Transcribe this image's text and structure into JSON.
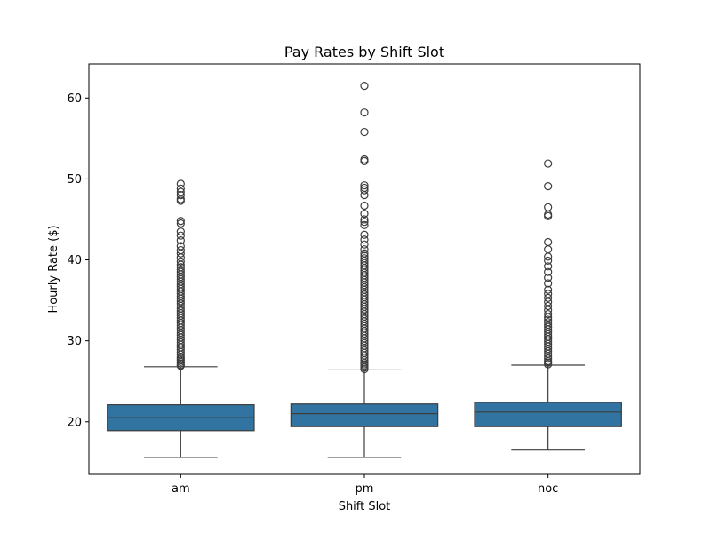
{
  "chart_data": {
    "type": "box",
    "title": "Pay Rates by Shift Slot",
    "xlabel": "Shift Slot",
    "ylabel": "Hourly Rate ($)",
    "categories": [
      "am",
      "pm",
      "noc"
    ],
    "ylim": [
      13.5,
      64.2
    ],
    "yticks": [
      20,
      30,
      40,
      50,
      60
    ],
    "box_color": "#3274a1",
    "line_color": "#3d3d3d",
    "boxes": [
      {
        "name": "am",
        "whisker_low": 15.6,
        "q1": 18.9,
        "median": 20.5,
        "q3": 22.1,
        "whisker_high": 26.8,
        "outliers": [
          26.9,
          27.0,
          27.2,
          27.4,
          27.6,
          27.8,
          28.0,
          28.3,
          28.6,
          28.9,
          29.2,
          29.5,
          29.8,
          30.1,
          30.4,
          30.7,
          31.0,
          31.3,
          31.6,
          31.9,
          32.2,
          32.5,
          32.8,
          33.1,
          33.4,
          33.7,
          34.0,
          34.3,
          34.6,
          34.9,
          35.2,
          35.5,
          35.8,
          36.1,
          36.4,
          36.7,
          37.0,
          37.3,
          37.6,
          37.9,
          38.2,
          38.5,
          38.8,
          39.1,
          39.4,
          39.8,
          40.3,
          40.8,
          41.2,
          41.7,
          42.4,
          43.0,
          43.5,
          44.5,
          44.8,
          47.3,
          47.5,
          48.0,
          48.4,
          48.8,
          49.4
        ]
      },
      {
        "name": "pm",
        "whisker_low": 15.6,
        "q1": 19.4,
        "median": 21.0,
        "q3": 22.2,
        "whisker_high": 26.4,
        "outliers": [
          26.5,
          26.7,
          26.9,
          27.1,
          27.3,
          27.6,
          27.9,
          28.2,
          28.5,
          28.8,
          29.1,
          29.4,
          29.7,
          30.0,
          30.3,
          30.6,
          30.9,
          31.2,
          31.5,
          31.8,
          32.1,
          32.4,
          32.7,
          33.0,
          33.3,
          33.6,
          33.9,
          34.2,
          34.5,
          34.8,
          35.1,
          35.4,
          35.7,
          36.0,
          36.3,
          36.6,
          36.9,
          37.2,
          37.5,
          37.8,
          38.1,
          38.4,
          38.7,
          39.0,
          39.3,
          39.6,
          39.9,
          40.2,
          40.5,
          40.8,
          41.3,
          41.9,
          42.5,
          43.1,
          44.3,
          44.7,
          45.0,
          45.7,
          46.7,
          48.0,
          48.6,
          48.9,
          49.2,
          52.2,
          52.4,
          55.8,
          58.2,
          61.5
        ]
      },
      {
        "name": "noc",
        "whisker_low": 16.5,
        "q1": 19.4,
        "median": 21.2,
        "q3": 22.4,
        "whisker_high": 27.0,
        "outliers": [
          27.1,
          27.3,
          27.5,
          27.8,
          28.1,
          28.4,
          28.7,
          29.0,
          29.3,
          29.6,
          29.9,
          30.2,
          30.5,
          30.8,
          31.1,
          31.4,
          31.7,
          32.0,
          32.3,
          32.6,
          32.9,
          33.3,
          33.8,
          34.3,
          34.8,
          35.3,
          35.8,
          36.3,
          37.1,
          37.8,
          38.5,
          39.2,
          39.9,
          40.4,
          41.3,
          42.2,
          45.4,
          45.6,
          46.5,
          49.1,
          51.9
        ]
      }
    ]
  }
}
